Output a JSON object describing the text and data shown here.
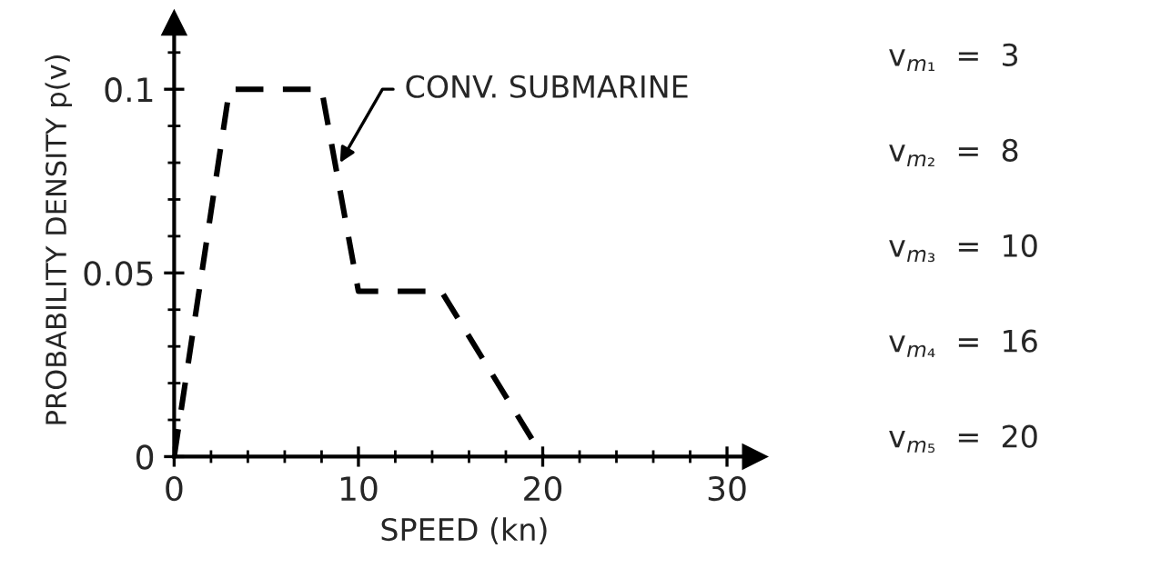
{
  "chart_data": {
    "type": "line",
    "xlabel": "SPEED (kn)",
    "ylabel": "PROBABILITY DENSITY p(v)",
    "x": [
      0,
      3,
      8,
      10,
      14.5,
      20
    ],
    "series": [
      {
        "color": "#000000",
        "values": [
          0,
          0.1,
          0.1,
          0.045,
          0.045,
          0
        ]
      }
    ],
    "line_style": "dashed",
    "marker": "none",
    "grid": false,
    "legend": false,
    "xlim": [
      0,
      31.5
    ],
    "ylim": [
      0,
      0.118
    ],
    "xticks": [
      0,
      10,
      20,
      30
    ],
    "yticks": [
      0,
      0.05,
      0.1
    ],
    "annotations": [
      {
        "text": "CONV. SUBMARINE",
        "x": 9,
        "y": 0.08
      },
      "v$_{m₁}$  =  3",
      "v$_{m₂}$  =  8",
      "v$_{m₃}$  =  10",
      "v$_{m₄}$  =  16",
      "v$_{m₅}$  =  20"
    ]
  }
}
